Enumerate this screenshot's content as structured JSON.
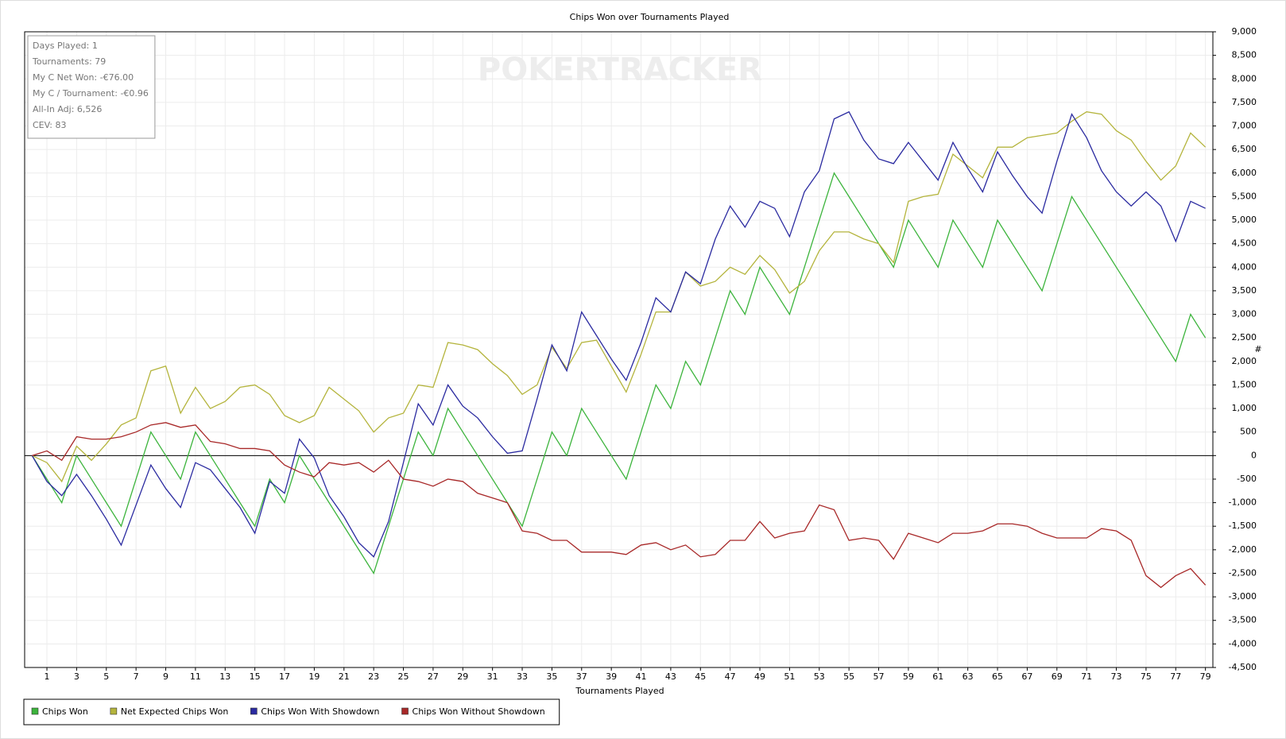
{
  "chart_data": {
    "type": "line",
    "title": "Chips Won over Tournaments Played",
    "x_label": "Tournaments Played",
    "y_label": "#",
    "watermark": "POKERTRACKER",
    "stats": [
      "Days Played: 1",
      "Tournaments: 79",
      "My C Net Won: -€76.00",
      "My C / Tournament: -€0.96",
      "All-In Adj: 6,526",
      "CEV: 83"
    ],
    "x": [
      0,
      1,
      2,
      3,
      4,
      5,
      6,
      7,
      8,
      9,
      10,
      11,
      12,
      13,
      14,
      15,
      16,
      17,
      18,
      19,
      20,
      21,
      22,
      23,
      24,
      25,
      26,
      27,
      28,
      29,
      30,
      31,
      32,
      33,
      34,
      35,
      36,
      37,
      38,
      39,
      40,
      41,
      42,
      43,
      44,
      45,
      46,
      47,
      48,
      49,
      50,
      51,
      52,
      53,
      54,
      55,
      56,
      57,
      58,
      59,
      60,
      61,
      62,
      63,
      64,
      65,
      66,
      67,
      68,
      69,
      70,
      71,
      72,
      73,
      74,
      75,
      76,
      77,
      78,
      79
    ],
    "xlim": [
      -0.5,
      79.5
    ],
    "xticks": [
      1,
      3,
      5,
      7,
      9,
      11,
      13,
      15,
      17,
      19,
      21,
      23,
      25,
      27,
      29,
      31,
      33,
      35,
      37,
      39,
      41,
      43,
      45,
      47,
      49,
      51,
      53,
      55,
      57,
      59,
      61,
      63,
      65,
      67,
      69,
      71,
      73,
      75,
      77,
      79
    ],
    "ylim": [
      -4500,
      9000
    ],
    "yticks": [
      {
        "value": -4500,
        "label": "-4,500"
      },
      {
        "value": -4000,
        "label": "-4,000"
      },
      {
        "value": -3500,
        "label": "-3,500"
      },
      {
        "value": -3000,
        "label": "-3,000"
      },
      {
        "value": -2500,
        "label": "-2,500"
      },
      {
        "value": -2000,
        "label": "-2,000"
      },
      {
        "value": -1500,
        "label": "-1,500"
      },
      {
        "value": -1000,
        "label": "-1,000"
      },
      -500,
      0,
      500,
      {
        "value": 1000,
        "label": "1,000"
      },
      {
        "value": 1500,
        "label": "1,500"
      },
      {
        "value": 2000,
        "label": "2,000"
      },
      {
        "value": 2500,
        "label": "2,500"
      },
      {
        "value": 3000,
        "label": "3,000"
      },
      {
        "value": 3500,
        "label": "3,500"
      },
      {
        "value": 4000,
        "label": "4,000"
      },
      {
        "value": 4500,
        "label": "4,500"
      },
      {
        "value": 5000,
        "label": "5,000"
      },
      {
        "value": 5500,
        "label": "5,500"
      },
      {
        "value": 6000,
        "label": "6,000"
      },
      {
        "value": 6500,
        "label": "6,500"
      },
      {
        "value": 7000,
        "label": "7,000"
      },
      {
        "value": 7500,
        "label": "7,500"
      },
      {
        "value": 8000,
        "label": "8,000"
      },
      {
        "value": 8500,
        "label": "8,500"
      },
      {
        "value": 9000,
        "label": "9,000"
      }
    ],
    "grid": true,
    "legend": "bottom-left",
    "series": [
      {
        "name": "Chips Won",
        "color": "#3cb43c",
        "values": [
          0,
          -500,
          -1000,
          0,
          -500,
          -1000,
          -1500,
          -500,
          500,
          0,
          -500,
          500,
          0,
          -500,
          -1000,
          -1500,
          -500,
          -1000,
          0,
          -500,
          -1000,
          -1500,
          -2000,
          -2500,
          -1500,
          -500,
          500,
          0,
          1000,
          500,
          0,
          -500,
          -1000,
          -1500,
          -500,
          500,
          0,
          1000,
          500,
          0,
          -500,
          500,
          1500,
          1000,
          2000,
          1500,
          2500,
          3500,
          3000,
          4000,
          3500,
          3000,
          4000,
          5000,
          6000,
          5500,
          5000,
          4500,
          4000,
          5000,
          4500,
          4000,
          5000,
          4500,
          4000,
          5000,
          4500,
          4000,
          3500,
          4500,
          5500,
          5000,
          4500,
          4000,
          3500,
          3000,
          2500,
          2000,
          3000,
          2500
        ]
      },
      {
        "name": "Net Expected Chips Won",
        "color": "#b4b43c",
        "values": [
          0,
          -150,
          -550,
          200,
          -100,
          250,
          650,
          800,
          1800,
          1900,
          900,
          1450,
          1000,
          1150,
          1450,
          1500,
          1300,
          850,
          700,
          850,
          1450,
          1200,
          950,
          500,
          800,
          900,
          1500,
          1450,
          2400,
          2350,
          2250,
          1950,
          1700,
          1300,
          1500,
          2300,
          1850,
          2400,
          2450,
          1900,
          1350,
          2150,
          3050,
          3050,
          3900,
          3600,
          3700,
          4000,
          3850,
          4250,
          3950,
          3450,
          3700,
          4350,
          4750,
          4750,
          4600,
          4500,
          4100,
          5400,
          5500,
          5550,
          6400,
          6150,
          5900,
          6550,
          6550,
          6750,
          6800,
          6850,
          7100,
          7300,
          7250,
          6900,
          6700,
          6250,
          5850,
          6150,
          6850,
          6550
        ]
      },
      {
        "name": "Chips Won With Showdown",
        "color": "#2a2aa0",
        "values": [
          0,
          -550,
          -850,
          -400,
          -850,
          -1350,
          -1900,
          -1050,
          -200,
          -700,
          -1100,
          -150,
          -300,
          -700,
          -1100,
          -1650,
          -550,
          -800,
          350,
          -50,
          -850,
          -1300,
          -1850,
          -2150,
          -1400,
          -150,
          1100,
          650,
          1500,
          1050,
          800,
          400,
          50,
          100,
          1200,
          2350,
          1800,
          3050,
          2550,
          2050,
          1600,
          2400,
          3350,
          3050,
          3900,
          3650,
          4600,
          5300,
          4850,
          5400,
          5250,
          4650,
          5600,
          6050,
          7150,
          7300,
          6700,
          6300,
          6200,
          6650,
          6250,
          5850,
          6650,
          6100,
          5600,
          6450,
          5950,
          5500,
          5150,
          6250,
          7250,
          6750,
          6050,
          5600,
          5300,
          5600,
          5300,
          4550,
          5400,
          5250
        ]
      },
      {
        "name": "Chips Won Without Showdown",
        "color": "#a82828",
        "values": [
          0,
          100,
          -100,
          400,
          350,
          350,
          400,
          500,
          650,
          700,
          600,
          650,
          300,
          250,
          150,
          150,
          100,
          -200,
          -350,
          -450,
          -150,
          -200,
          -150,
          -350,
          -100,
          -500,
          -550,
          -650,
          -500,
          -550,
          -800,
          -900,
          -1000,
          -1600,
          -1650,
          -1800,
          -1800,
          -2050,
          -2050,
          -2050,
          -2100,
          -1900,
          -1850,
          -2000,
          -1900,
          -2150,
          -2100,
          -1800,
          -1800,
          -1400,
          -1750,
          -1650,
          -1600,
          -1050,
          -1150,
          -1800,
          -1750,
          -1800,
          -2200,
          -1650,
          -1750,
          -1850,
          -1650,
          -1650,
          -1600,
          -1450,
          -1450,
          -1500,
          -1650,
          -1750,
          -1750,
          -1750,
          -1550,
          -1600,
          -1800,
          -2550,
          -2800,
          -2550,
          -2400,
          -2750
        ]
      }
    ]
  }
}
